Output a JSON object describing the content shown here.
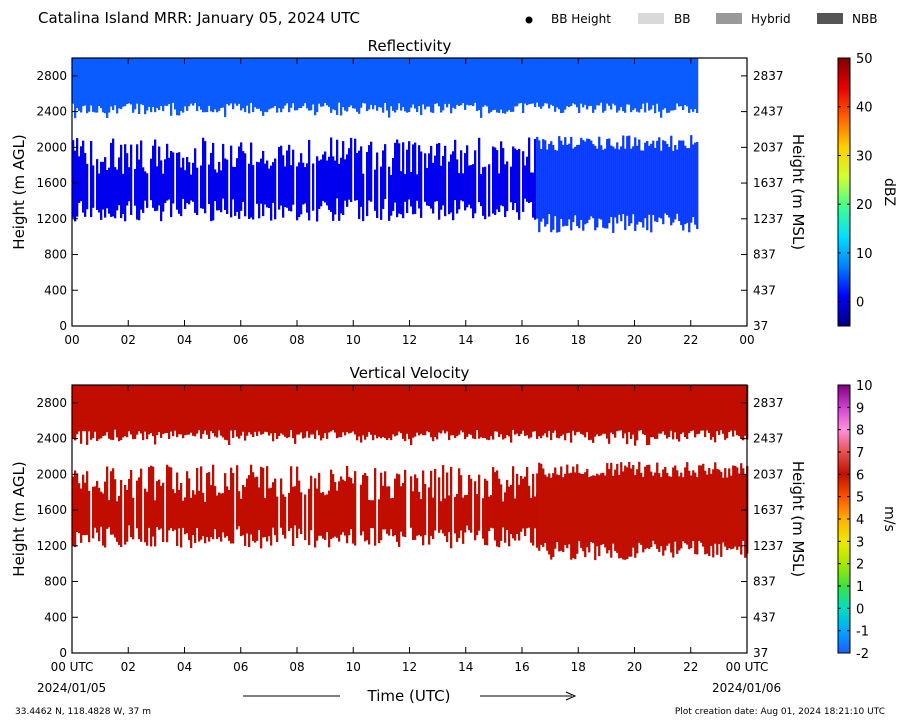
{
  "header": {
    "title": "Catalina Island MRR:  January 05, 2024 UTC",
    "legend": [
      {
        "label": "BB Height",
        "marker": "dot",
        "color": "#000000"
      },
      {
        "label": "BB",
        "marker": "swatch",
        "color": "#d9d9d9"
      },
      {
        "label": "Hybrid",
        "marker": "swatch",
        "color": "#999999"
      },
      {
        "label": "NBB",
        "marker": "swatch",
        "color": "#555555"
      }
    ]
  },
  "footer": {
    "location": "33.4462 N, 118.4828 W, 37 m",
    "creation": "Plot creation date: Aug 01, 2024 18:21:10 UTC",
    "xlabel": "Time (UTC)",
    "start_date": "2024/01/05",
    "end_date": "2024/01/06"
  },
  "chart_data": [
    {
      "type": "heatmap",
      "title": "Reflectivity",
      "xlabel": "",
      "ylabel": "Height (m AGL)",
      "ylabel_right": "Height (m MSL)",
      "x_ticks": [
        "00",
        "02",
        "04",
        "06",
        "08",
        "10",
        "12",
        "14",
        "16",
        "18",
        "20",
        "22",
        "00"
      ],
      "xlim_hours": [
        0,
        24
      ],
      "y_ticks": [
        0,
        400,
        800,
        1200,
        1600,
        2000,
        2400,
        2800
      ],
      "y_ticks_right": [
        37,
        437,
        837,
        1237,
        1637,
        2037,
        2437,
        2837
      ],
      "ylim": [
        0,
        3000
      ],
      "colorbar": {
        "label": "dBZ",
        "range": [
          -5,
          50
        ],
        "ticks": [
          0,
          10,
          20,
          30,
          40,
          50
        ],
        "colors": [
          "#00007f",
          "#0000ff",
          "#0080ff",
          "#00e0ff",
          "#40ff90",
          "#d0ff30",
          "#ffd000",
          "#ff6000",
          "#e80000",
          "#800000"
        ]
      },
      "layers": [
        {
          "name": "upper",
          "start_hour": 0,
          "end_hour": 22.2,
          "bottom": 2500,
          "top": 3000,
          "color": "#0a5cff"
        },
        {
          "name": "lower",
          "start_hour": 0,
          "end_hour": 16.5,
          "bottom": 1300,
          "top": 1900,
          "color": "#0000ee"
        },
        {
          "name": "lower-dense",
          "start_hour": 16.5,
          "end_hour": 22.2,
          "bottom": 1150,
          "top": 2050,
          "color": "#0a3cff"
        }
      ]
    },
    {
      "type": "heatmap",
      "title": "Vertical Velocity",
      "xlabel": "Time (UTC)",
      "ylabel": "Height (m AGL)",
      "ylabel_right": "Height (m MSL)",
      "x_ticks": [
        "00 UTC",
        "02",
        "04",
        "06",
        "08",
        "10",
        "12",
        "14",
        "16",
        "18",
        "20",
        "22",
        "00 UTC"
      ],
      "xlim_hours": [
        0,
        24
      ],
      "y_ticks": [
        0,
        400,
        800,
        1200,
        1600,
        2000,
        2400,
        2800
      ],
      "y_ticks_right": [
        37,
        437,
        837,
        1237,
        1637,
        2037,
        2437,
        2837
      ],
      "ylim": [
        0,
        3000
      ],
      "colorbar": {
        "label": "m/s",
        "range": [
          -2,
          10
        ],
        "ticks": [
          -2,
          -1,
          0,
          1,
          2,
          3,
          4,
          5,
          6,
          7,
          8,
          9,
          10
        ],
        "colors": [
          "#1e5cff",
          "#00a8ff",
          "#00e0c0",
          "#40e040",
          "#a8e800",
          "#f0e800",
          "#ffb000",
          "#ff5000",
          "#c01000",
          "#e85050",
          "#ff90e0",
          "#d040d0",
          "#800080"
        ]
      },
      "layers": [
        {
          "name": "upper",
          "start_hour": 0,
          "end_hour": 24,
          "bottom": 2500,
          "top": 3000,
          "color": "#c00d00"
        },
        {
          "name": "lower",
          "start_hour": 0,
          "end_hour": 16.5,
          "bottom": 1300,
          "top": 1900,
          "color": "#c00d00"
        },
        {
          "name": "lower-dense",
          "start_hour": 16.5,
          "end_hour": 24,
          "bottom": 1150,
          "top": 2050,
          "color": "#c00d00"
        }
      ]
    }
  ]
}
